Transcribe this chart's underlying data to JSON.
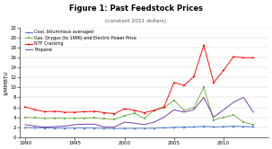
{
  "title": "Figure 1: Past Feedstock Prices",
  "subtitle": "(constant 2011 dollars)",
  "ylabel": "$/MMBTU",
  "ylim": [
    0,
    22
  ],
  "xlim": [
    1989.5,
    2014.5
  ],
  "yticks": [
    0,
    2,
    4,
    6,
    8,
    10,
    12,
    14,
    16,
    18,
    20,
    22
  ],
  "xticks": [
    1990,
    1995,
    2000,
    2005,
    2010
  ],
  "coal": {
    "label": "Coal, bituminous averaged",
    "color": "#4472C4",
    "years": [
      1990,
      1991,
      1992,
      1993,
      1994,
      1995,
      1996,
      1997,
      1998,
      1999,
      2000,
      2001,
      2002,
      2003,
      2004,
      2005,
      2006,
      2007,
      2008,
      2009,
      2010,
      2011,
      2012,
      2013
    ],
    "values": [
      1.9,
      1.85,
      1.82,
      1.8,
      1.78,
      1.8,
      1.82,
      1.8,
      1.75,
      1.72,
      1.75,
      1.76,
      1.76,
      1.78,
      1.85,
      1.95,
      2.0,
      2.05,
      2.15,
      2.05,
      2.1,
      2.18,
      2.12,
      2.08
    ]
  },
  "gas": {
    "label": "Gas, Drygus (to 1996) and Electric Power Price",
    "color": "#70AD47",
    "years": [
      1990,
      1991,
      1992,
      1993,
      1994,
      1995,
      1996,
      1997,
      1998,
      1999,
      2000,
      2001,
      2002,
      2003,
      2004,
      2005,
      2006,
      2007,
      2008,
      2009,
      2010,
      2011,
      2012,
      2013
    ],
    "values": [
      4.0,
      3.85,
      3.75,
      3.8,
      3.75,
      3.78,
      3.8,
      3.85,
      3.65,
      3.55,
      4.3,
      4.8,
      3.75,
      5.4,
      5.9,
      7.4,
      5.4,
      5.9,
      10.0,
      3.4,
      4.0,
      4.4,
      3.0,
      2.5
    ]
  },
  "ntf": {
    "label": "NTF Cracking",
    "color": "#FF0000",
    "years": [
      1990,
      1991,
      1992,
      1993,
      1994,
      1995,
      1996,
      1997,
      1998,
      1999,
      2000,
      2001,
      2002,
      2003,
      2004,
      2005,
      2006,
      2007,
      2008,
      2009,
      2010,
      2011,
      2012,
      2013
    ],
    "values": [
      6.1,
      5.5,
      5.1,
      5.2,
      5.0,
      5.0,
      5.1,
      5.2,
      4.9,
      4.7,
      5.7,
      5.4,
      4.9,
      5.4,
      6.1,
      11.0,
      10.4,
      12.2,
      18.5,
      11.0,
      13.5,
      16.2,
      16.0,
      16.0
    ]
  },
  "propane": {
    "label": "Propane",
    "color": "#7030A0",
    "years": [
      1990,
      1991,
      1992,
      1993,
      1994,
      1995,
      1996,
      1997,
      1998,
      1999,
      2000,
      2001,
      2002,
      2003,
      2004,
      2005,
      2006,
      2007,
      2008,
      2009,
      2010,
      2011,
      2012,
      2013
    ],
    "values": [
      2.5,
      2.2,
      2.0,
      2.1,
      2.2,
      2.5,
      2.6,
      2.6,
      2.0,
      2.0,
      3.0,
      2.8,
      2.5,
      3.0,
      4.0,
      5.5,
      5.0,
      5.5,
      8.0,
      4.0,
      5.5,
      7.0,
      8.0,
      5.0
    ]
  },
  "title_fontsize": 6.0,
  "subtitle_fontsize": 4.2,
  "tick_fontsize": 4.0,
  "ylabel_fontsize": 4.2,
  "legend_fontsize": 3.5,
  "linewidth": 0.65,
  "markersize": 1.8
}
